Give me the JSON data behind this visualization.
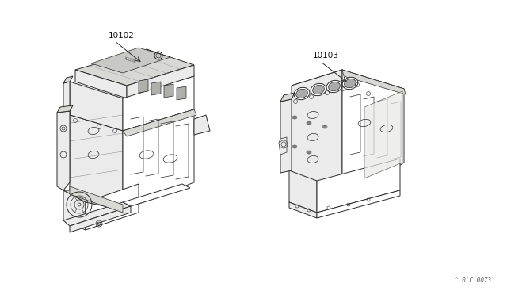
{
  "background_color": "#ffffff",
  "line_color": "#2a2a2a",
  "fill_color": "#f0f0ee",
  "label_color": "#111111",
  "label1": "10102",
  "label2": "10103",
  "watermark": "^ 0'C 0073",
  "fig_width": 6.4,
  "fig_height": 3.72,
  "dpi": 100,
  "lw": 0.7
}
